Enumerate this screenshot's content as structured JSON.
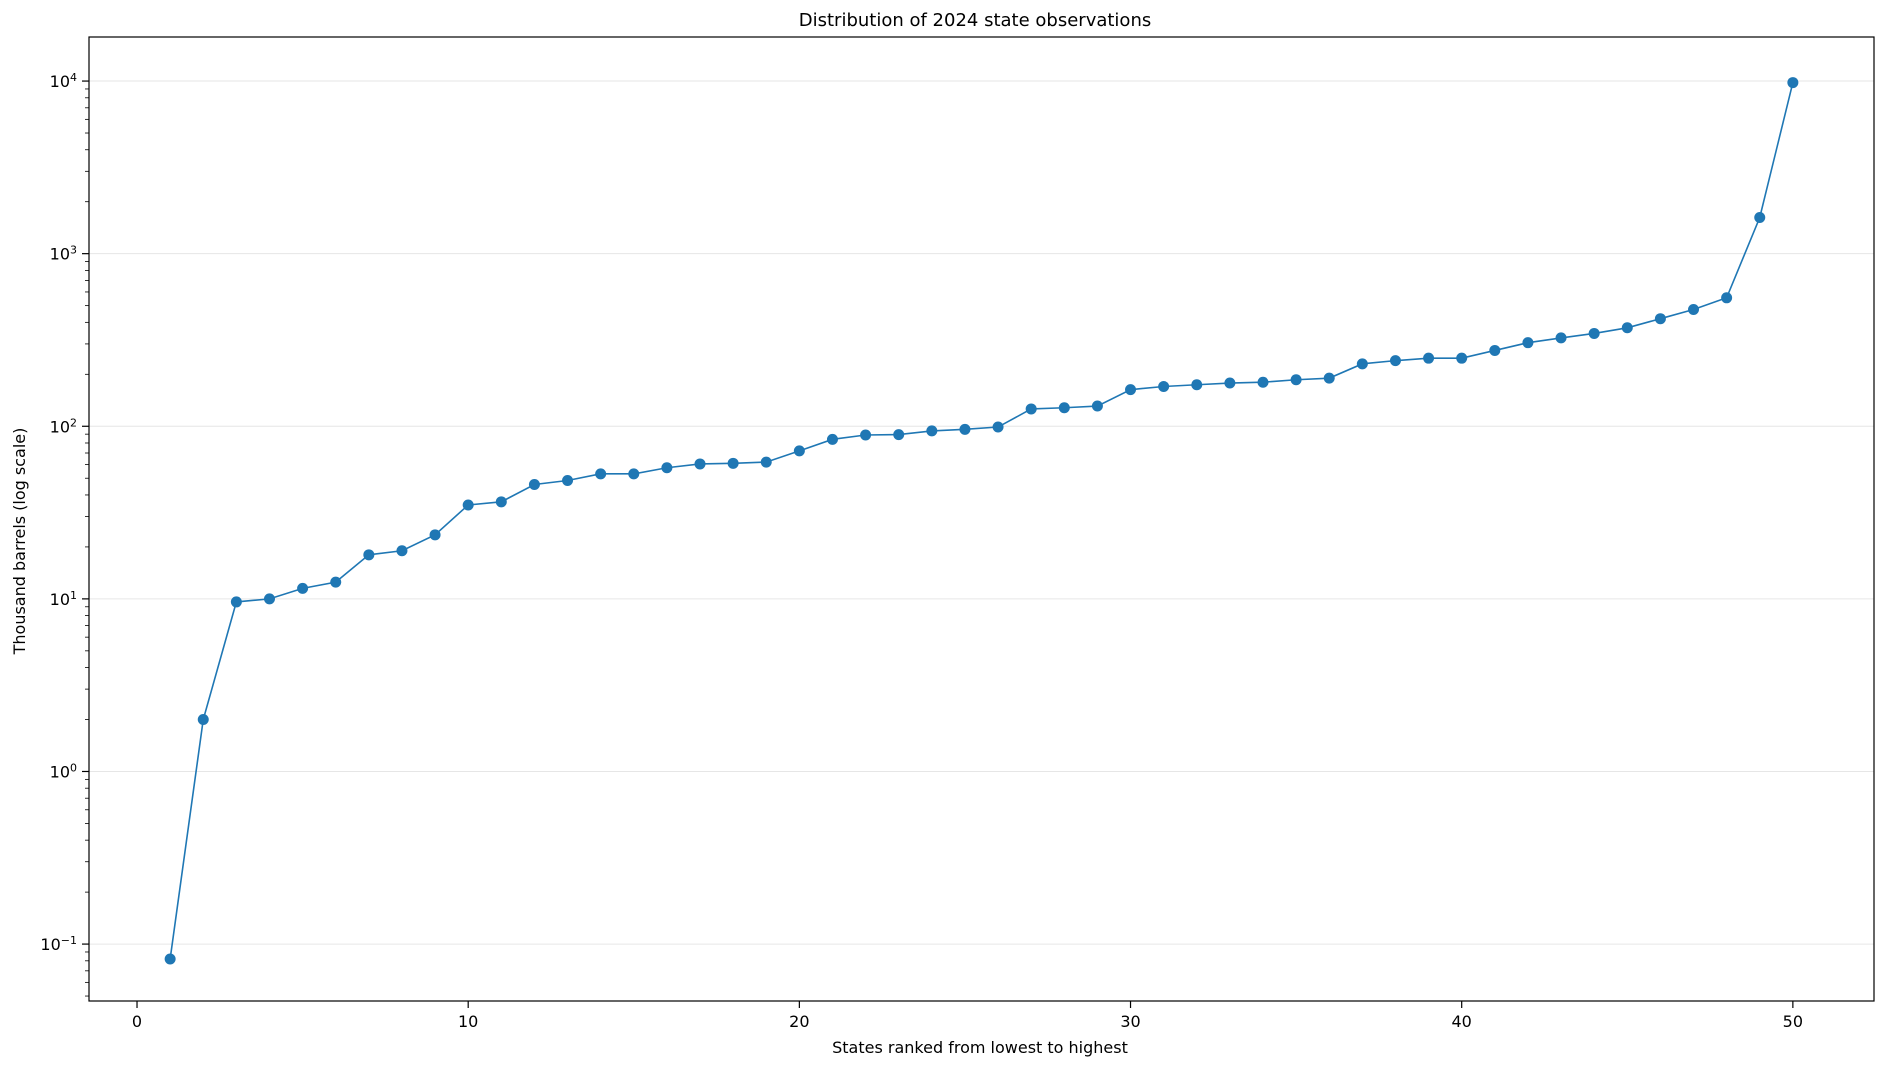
{
  "chart_data": {
    "type": "line",
    "title": "Distribution of 2024 state observations",
    "xlabel": "States ranked from lowest to highest",
    "ylabel": "Thousand barrels (log scale)",
    "yscale": "log",
    "xlim": [
      -1.45,
      52.45
    ],
    "ylim": [
      0.0468,
      18000
    ],
    "x_ticks": [
      0,
      10,
      20,
      30,
      40,
      50
    ],
    "y_ticks": [
      {
        "value": 0.1,
        "base": "10",
        "exp": "−1"
      },
      {
        "value": 1,
        "base": "10",
        "exp": "0"
      },
      {
        "value": 10,
        "base": "10",
        "exp": "1"
      },
      {
        "value": 100,
        "base": "10",
        "exp": "2"
      },
      {
        "value": 1000,
        "base": "10",
        "exp": "3"
      },
      {
        "value": 10000,
        "base": "10",
        "exp": "4"
      }
    ],
    "grid": "horizontal major",
    "series": [
      {
        "color": "#1f77b4",
        "marker": "circle",
        "x": [
          1,
          2,
          3,
          4,
          5,
          6,
          7,
          8,
          9,
          10,
          11,
          12,
          13,
          14,
          15,
          16,
          17,
          18,
          19,
          20,
          21,
          22,
          23,
          24,
          25,
          26,
          27,
          28,
          29,
          30,
          31,
          32,
          33,
          34,
          35,
          36,
          37,
          38,
          39,
          40,
          41,
          42,
          43,
          44,
          45,
          46,
          47,
          48,
          49,
          50
        ],
        "y": [
          0.082,
          2.0,
          9.6,
          10.0,
          11.5,
          12.5,
          18.0,
          19.0,
          23.5,
          35.0,
          36.5,
          46.0,
          48.5,
          53.0,
          53.0,
          57.5,
          60.5,
          61.0,
          62.0,
          72.0,
          84.0,
          89.0,
          89.5,
          94.0,
          96.0,
          99.0,
          126,
          128,
          131,
          163,
          170,
          174,
          178,
          180,
          186,
          190,
          230,
          240,
          248,
          248,
          275,
          305,
          325,
          345,
          372,
          420,
          475,
          555,
          1620,
          9800
        ]
      }
    ]
  }
}
